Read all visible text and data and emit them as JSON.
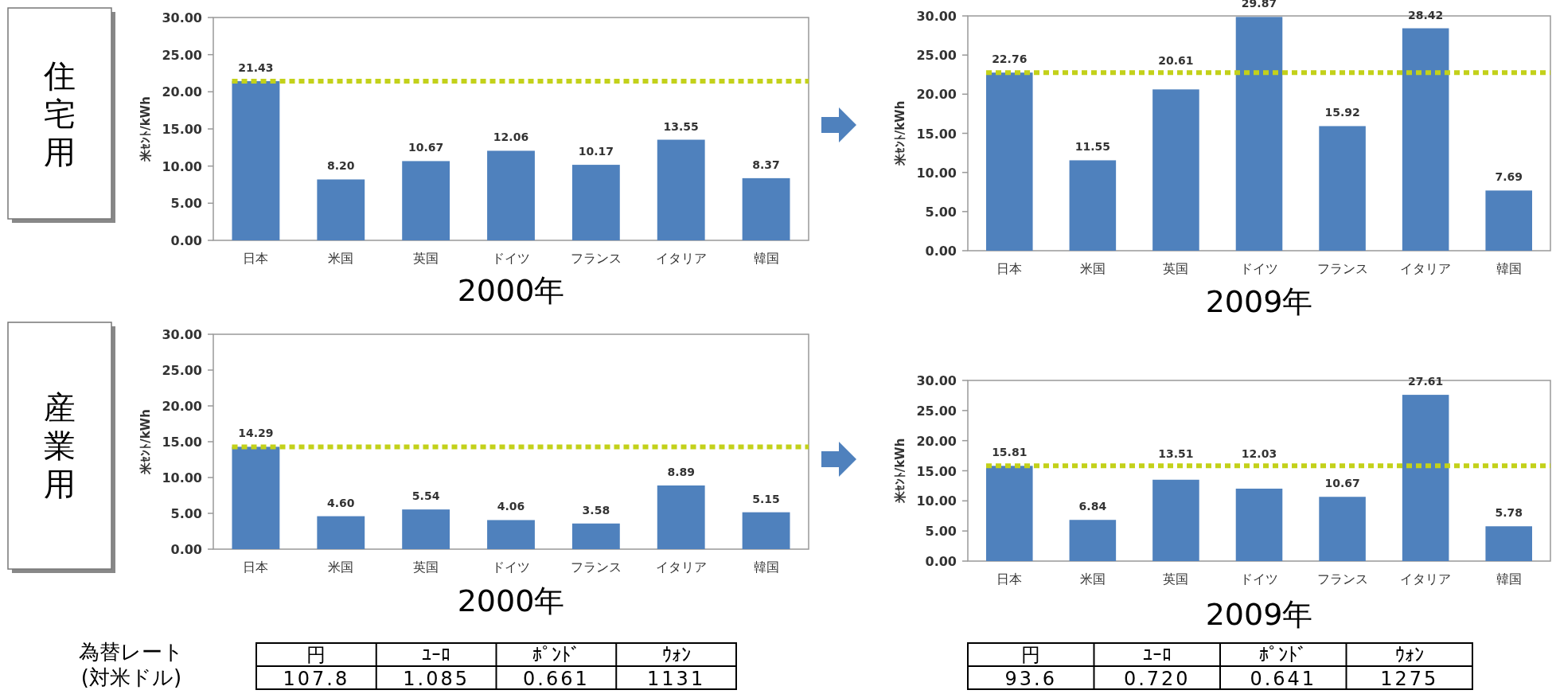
{
  "chart_data": [
    {
      "type": "other",
      "title": "住宅用"
    },
    {
      "type": "bar",
      "xlabel": "2000年",
      "ylabel": "米ｾﾝﾄ/kWh",
      "categories": [
        "日本",
        "米国",
        "英国",
        "ドイツ",
        "フランス",
        "イタリア",
        "韓国"
      ],
      "values": [
        21.43,
        8.2,
        10.67,
        12.06,
        10.17,
        13.55,
        8.37
      ],
      "value_labels": [
        "21.43",
        "8.20",
        "10.67",
        "12.06",
        "10.17",
        "13.55",
        "8.37"
      ],
      "color": "#4f81bd",
      "ylim": [
        0,
        30
      ],
      "yticks": [
        {
          "value": 0,
          "label": "0.00"
        },
        {
          "value": 5,
          "label": "5.00"
        },
        {
          "value": 10,
          "label": "10.00"
        },
        {
          "value": 15,
          "label": "15.00"
        },
        {
          "value": 20,
          "label": "20.00"
        },
        {
          "value": 25,
          "label": "25.00"
        },
        {
          "value": 30,
          "label": "30.00"
        }
      ],
      "ref_lines": [
        {
          "axis": "y",
          "value": 21.43,
          "color": "#c3d11a",
          "line_style": "dotted"
        }
      ]
    },
    {
      "type": "bar",
      "xlabel": "2009年",
      "ylabel": "米ｾﾝﾄ/kWh",
      "categories": [
        "日本",
        "米国",
        "英国",
        "ドイツ",
        "フランス",
        "イタリア",
        "韓国"
      ],
      "values": [
        22.76,
        11.55,
        20.61,
        29.87,
        15.92,
        28.42,
        7.69
      ],
      "value_labels": [
        "22.76",
        "11.55",
        "20.61",
        "29.87",
        "15.92",
        "28.42",
        "7.69"
      ],
      "color": "#4f81bd",
      "ylim": [
        0,
        30
      ],
      "yticks": [
        {
          "value": 0,
          "label": "0.00"
        },
        {
          "value": 5,
          "label": "5.00"
        },
        {
          "value": 10,
          "label": "10.00"
        },
        {
          "value": 15,
          "label": "15.00"
        },
        {
          "value": 20,
          "label": "20.00"
        },
        {
          "value": 25,
          "label": "25.00"
        },
        {
          "value": 30,
          "label": "30.00"
        }
      ],
      "ref_lines": [
        {
          "axis": "y",
          "value": 22.76,
          "color": "#c3d11a",
          "line_style": "dotted"
        }
      ]
    },
    {
      "type": "other",
      "title": "産業用"
    },
    {
      "type": "bar",
      "xlabel": "2000年",
      "ylabel": "米ｾﾝﾄ/kWh",
      "categories": [
        "日本",
        "米国",
        "英国",
        "ドイツ",
        "フランス",
        "イタリア",
        "韓国"
      ],
      "values": [
        14.29,
        4.6,
        5.54,
        4.06,
        3.58,
        8.89,
        5.15
      ],
      "value_labels": [
        "14.29",
        "4.60",
        "5.54",
        "4.06",
        "3.58",
        "8.89",
        "5.15"
      ],
      "color": "#4f81bd",
      "ylim": [
        0,
        30
      ],
      "yticks": [
        {
          "value": 0,
          "label": "0.00"
        },
        {
          "value": 5,
          "label": "5.00"
        },
        {
          "value": 10,
          "label": "10.00"
        },
        {
          "value": 15,
          "label": "15.00"
        },
        {
          "value": 20,
          "label": "20.00"
        },
        {
          "value": 25,
          "label": "25.00"
        },
        {
          "value": 30,
          "label": "30.00"
        }
      ],
      "ref_lines": [
        {
          "axis": "y",
          "value": 14.29,
          "color": "#c3d11a",
          "line_style": "dotted"
        }
      ]
    },
    {
      "type": "bar",
      "xlabel": "2009年",
      "ylabel": "米ｾﾝﾄ/kWh",
      "categories": [
        "日本",
        "米国",
        "英国",
        "ドイツ",
        "フランス",
        "イタリア",
        "韓国"
      ],
      "values": [
        15.81,
        6.84,
        13.51,
        12.03,
        10.67,
        27.61,
        5.78
      ],
      "value_labels": [
        "15.81",
        "6.84",
        "13.51",
        "12.03",
        "10.67",
        "27.61",
        "5.78"
      ],
      "color": "#4f81bd",
      "ylim": [
        0,
        30
      ],
      "yticks": [
        {
          "value": 0,
          "label": "0.00"
        },
        {
          "value": 5,
          "label": "5.00"
        },
        {
          "value": 10,
          "label": "10.00"
        },
        {
          "value": 15,
          "label": "15.00"
        },
        {
          "value": 20,
          "label": "20.00"
        },
        {
          "value": 25,
          "label": "25.00"
        },
        {
          "value": 30,
          "label": "30.00"
        }
      ],
      "ref_lines": [
        {
          "axis": "y",
          "value": 15.81,
          "color": "#c3d11a",
          "line_style": "dotted"
        }
      ]
    },
    {
      "type": "other",
      "title": "為替レート\n(対米ドル)",
      "categories": [
        "円",
        "ﾕｰﾛ",
        "ﾎﾟﾝﾄﾞ",
        "ｳｫﾝ"
      ],
      "values": [
        107.8,
        1.085,
        0.661,
        1131
      ],
      "value_labels": [
        "107.8",
        "1.085",
        "0.661",
        "1131"
      ]
    },
    {
      "type": "other",
      "categories": [
        "円",
        "ﾕｰﾛ",
        "ﾎﾟﾝﾄﾞ",
        "ｳｫﾝ"
      ],
      "values": [
        93.6,
        0.72,
        0.641,
        1275
      ],
      "value_labels": [
        "93.6",
        "0.720",
        "0.641",
        "1275"
      ]
    }
  ]
}
